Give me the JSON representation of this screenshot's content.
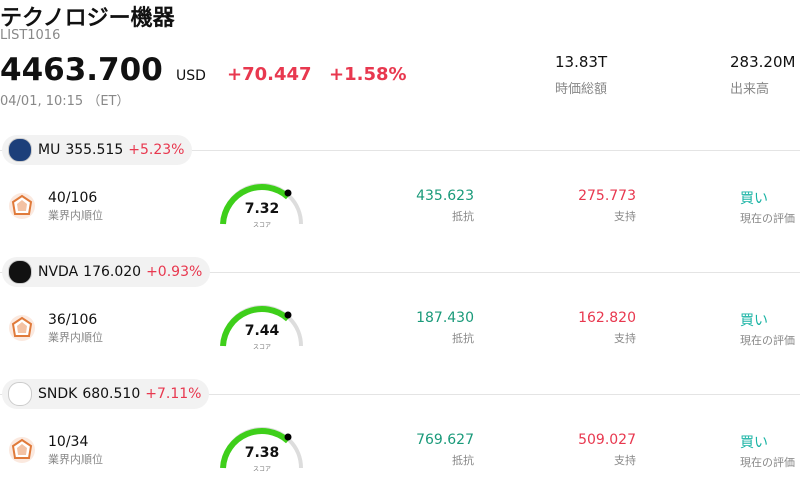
{
  "header": {
    "title": "テクノロジー機器",
    "code": "LIST1016",
    "price": "4463.700",
    "currency": "USD",
    "change": "+70.447",
    "change_pct": "+1.58%",
    "time": "04/01, 10:15 （ET）",
    "stats": [
      {
        "value": "13.83T",
        "label": "時価総額"
      },
      {
        "value": "283.20M",
        "label": "出来高"
      }
    ]
  },
  "stocks": [
    {
      "ticker": "MU",
      "price": "355.515",
      "change": "+5.23%",
      "rank": "40/106",
      "rank_label": "業界内順位",
      "score": "7.32",
      "score_label": "スコア",
      "resistance": "435.623",
      "resistance_label": "抵抗",
      "support": "275.773",
      "support_label": "支持",
      "rating": "買い",
      "rating_label": "現在の評価"
    },
    {
      "ticker": "NVDA",
      "price": "176.020",
      "change": "+0.93%",
      "rank": "36/106",
      "rank_label": "業界内順位",
      "score": "7.44",
      "score_label": "スコア",
      "resistance": "187.430",
      "resistance_label": "抵抗",
      "support": "162.820",
      "support_label": "支持",
      "rating": "買い",
      "rating_label": "現在の評価"
    },
    {
      "ticker": "SNDK",
      "price": "680.510",
      "change": "+7.11%",
      "rank": "10/34",
      "rank_label": "業界内順位",
      "score": "7.38",
      "score_label": "スコア",
      "resistance": "769.627",
      "resistance_label": "抵抗",
      "support": "509.027",
      "support_label": "支持",
      "rating": "買い",
      "rating_label": "現在の評価"
    }
  ]
}
